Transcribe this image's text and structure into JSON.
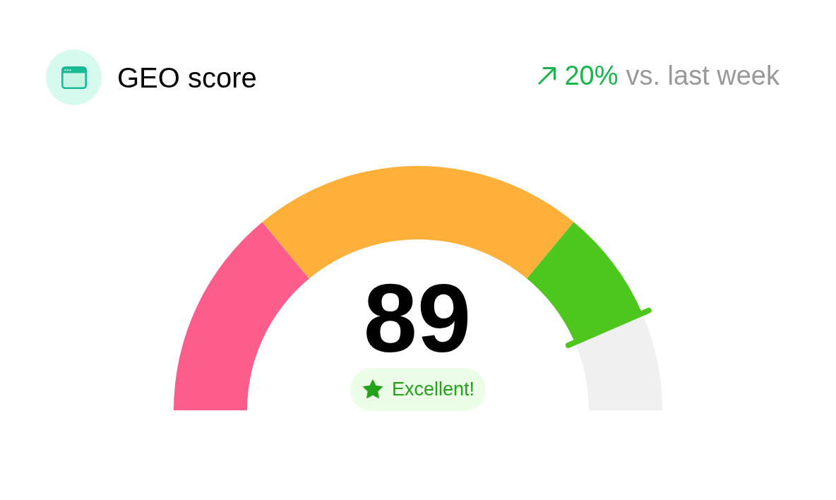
{
  "chart_data": {
    "type": "donut",
    "title": "GEO score",
    "categories": [
      null,
      null,
      null,
      null
    ],
    "values": [
      28,
      44,
      15,
      13
    ],
    "colors": [
      "#fd5d8a",
      "#ffb03a",
      "#4dc61d",
      "#f0f0f0"
    ],
    "annotations": [
      "20%",
      "vs. last week",
      "89",
      "Excellent!"
    ]
  }
}
